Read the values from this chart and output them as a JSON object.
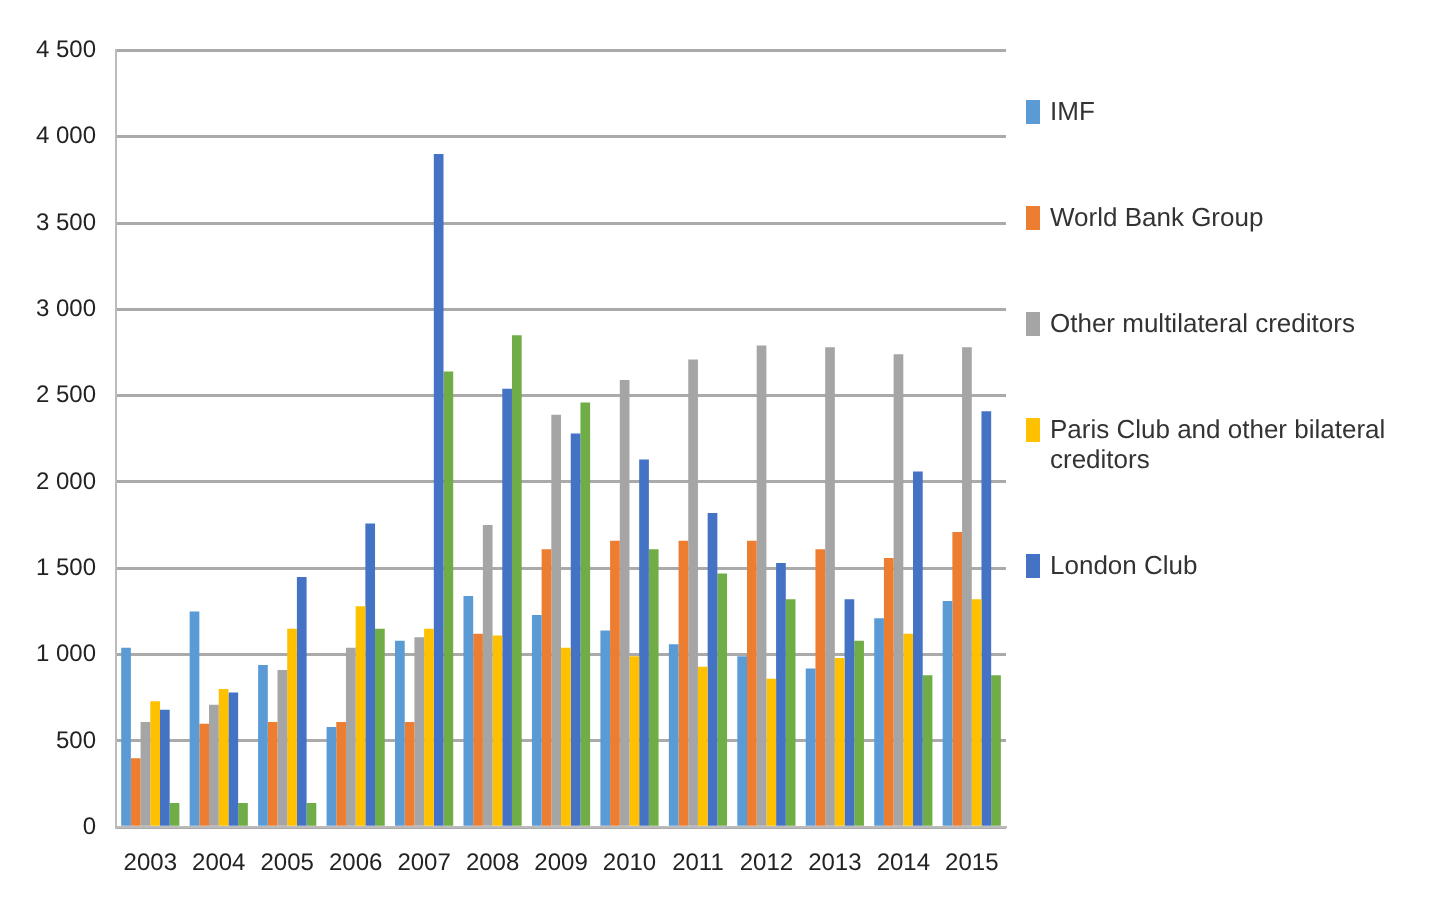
{
  "chart_data": {
    "type": "bar",
    "categories": [
      "2003",
      "2004",
      "2005",
      "2006",
      "2007",
      "2008",
      "2009",
      "2010",
      "2011",
      "2012",
      "2013",
      "2014",
      "2015"
    ],
    "series": [
      {
        "name": "IMF",
        "color": "#5b9bd5",
        "values": [
          1040,
          1250,
          940,
          580,
          1080,
          1340,
          1230,
          1140,
          1060,
          990,
          920,
          1210,
          1310
        ]
      },
      {
        "name": "World Bank Group",
        "color": "#ed7d31",
        "values": [
          400,
          600,
          610,
          610,
          610,
          1120,
          1610,
          1660,
          1660,
          1660,
          1610,
          1560,
          1710
        ]
      },
      {
        "name": "Other multilateral creditors",
        "color": "#a5a5a5",
        "values": [
          610,
          710,
          910,
          1040,
          1100,
          1750,
          2390,
          2590,
          2710,
          2790,
          2780,
          2740,
          2780
        ]
      },
      {
        "name": "Paris Club and other bilateral creditors",
        "color": "#ffc000",
        "values": [
          730,
          800,
          1150,
          1280,
          1150,
          1110,
          1040,
          990,
          930,
          860,
          980,
          1120,
          1320
        ]
      },
      {
        "name": "London Club",
        "color": "#4472c4",
        "values": [
          680,
          780,
          1450,
          1760,
          3900,
          2540,
          2280,
          2130,
          1820,
          1530,
          1320,
          2060,
          2410
        ]
      },
      {
        "color": "#70ad47",
        "values": [
          140,
          140,
          140,
          1150,
          2640,
          2850,
          2460,
          1610,
          1470,
          1320,
          1080,
          880,
          880
        ]
      }
    ],
    "ylim": [
      0,
      4500
    ],
    "yticks": [
      0,
      {
        "value": 500,
        "label": "500"
      },
      {
        "value": 1000,
        "label": "1 000"
      },
      {
        "value": 1500,
        "label": "1 500"
      },
      {
        "value": 2000,
        "label": "2 000"
      },
      {
        "value": 2500,
        "label": "2 500"
      },
      {
        "value": 3000,
        "label": "3 000"
      },
      {
        "value": 3500,
        "label": "3 500"
      },
      {
        "value": 4000,
        "label": "4 000"
      },
      {
        "value": 4500,
        "label": "4 500"
      }
    ],
    "grid": "y",
    "legend": "right"
  }
}
